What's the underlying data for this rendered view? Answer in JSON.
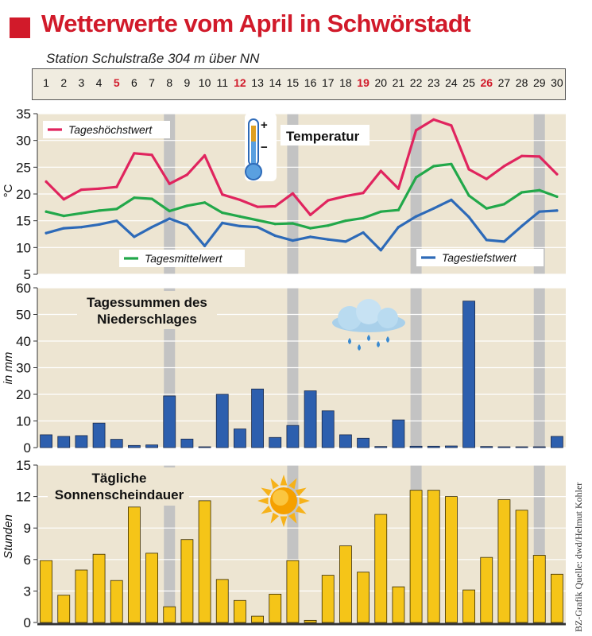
{
  "header": {
    "title": "Wetterwerte vom April in Schwörstadt",
    "subtitle": "Station Schulstraße 304 m über NN"
  },
  "days": [
    "1",
    "2",
    "3",
    "4",
    "5",
    "6",
    "7",
    "8",
    "9",
    "10",
    "11",
    "12",
    "13",
    "14",
    "15",
    "16",
    "17",
    "18",
    "19",
    "20",
    "21",
    "22",
    "23",
    "24",
    "25",
    "26",
    "27",
    "28",
    "29",
    "30"
  ],
  "sundays": [
    "5",
    "12",
    "19",
    "26"
  ],
  "colors": {
    "title_red": "#d11a2a",
    "panel_bg": "#ede5d2",
    "week_band": "#c3c3c3",
    "max_line": "#e0245e",
    "mean_line": "#22a84a",
    "min_line": "#2d6ab8",
    "precip_bar": "#2d5fae",
    "sun_bar": "#f5c518"
  },
  "icons": [
    "thermometer-icon",
    "rain-cloud-icon",
    "sun-icon"
  ],
  "source": "BZ-Grafik   Quelle: dwd/Helmut Kohler",
  "chart_data": [
    {
      "type": "line",
      "title": "Temperatur",
      "ylabel": "°C",
      "ylim": [
        5,
        35
      ],
      "yticks": [
        "5",
        "10",
        "15",
        "20",
        "25",
        "30",
        "35"
      ],
      "x": [
        1,
        2,
        3,
        4,
        5,
        6,
        7,
        8,
        9,
        10,
        11,
        12,
        13,
        14,
        15,
        16,
        17,
        18,
        19,
        20,
        21,
        22,
        23,
        24,
        25,
        26,
        27,
        28,
        29,
        30
      ],
      "series": [
        {
          "name": "Tageshöchstwert",
          "values": [
            22.3,
            19.0,
            20.8,
            21.0,
            21.3,
            27.6,
            27.3,
            21.9,
            23.6,
            27.2,
            19.9,
            18.9,
            17.6,
            17.7,
            20.1,
            16.1,
            18.8,
            19.6,
            20.2,
            24.3,
            21.0,
            31.9,
            33.9,
            32.8,
            24.6,
            22.8,
            25.2,
            27.1,
            27.0,
            23.7
          ]
        },
        {
          "name": "Tagesmittelwert",
          "values": [
            16.7,
            15.9,
            16.4,
            16.9,
            17.2,
            19.3,
            19.1,
            16.8,
            17.8,
            18.4,
            16.5,
            15.8,
            15.1,
            14.4,
            14.5,
            13.6,
            14.1,
            15.0,
            15.5,
            16.7,
            17.0,
            23.1,
            25.2,
            25.6,
            19.7,
            17.3,
            18.1,
            20.3,
            20.7,
            19.5
          ]
        },
        {
          "name": "Tagestiefstwert",
          "values": [
            12.7,
            13.6,
            13.8,
            14.3,
            15.0,
            12.0,
            13.8,
            15.4,
            14.2,
            10.3,
            14.6,
            14.0,
            13.8,
            12.2,
            11.3,
            12.0,
            11.5,
            11.1,
            12.8,
            9.5,
            13.8,
            15.8,
            17.3,
            18.9,
            15.7,
            11.4,
            11.1,
            14.0,
            16.7,
            16.9
          ]
        }
      ]
    },
    {
      "type": "bar",
      "title": "Tagessummen des Niederschlages",
      "ylabel": "in mm",
      "ylim": [
        0,
        60
      ],
      "yticks": [
        "0",
        "10",
        "20",
        "30",
        "40",
        "50",
        "60"
      ],
      "categories": [
        "1",
        "2",
        "3",
        "4",
        "5",
        "6",
        "7",
        "8",
        "9",
        "10",
        "11",
        "12",
        "13",
        "14",
        "15",
        "16",
        "17",
        "18",
        "19",
        "20",
        "21",
        "22",
        "23",
        "24",
        "25",
        "26",
        "27",
        "28",
        "29",
        "30"
      ],
      "values": [
        4.8,
        4.2,
        4.5,
        9.2,
        3.1,
        0.8,
        1.0,
        19.4,
        3.2,
        0.3,
        20.0,
        7.0,
        22.0,
        3.8,
        8.3,
        21.3,
        13.8,
        4.8,
        3.5,
        0.4,
        10.4,
        0.5,
        0.5,
        0.6,
        55.0,
        0.4,
        0.3,
        0.3,
        0.3,
        4.2
      ]
    },
    {
      "type": "bar",
      "title": "Tägliche Sonnenscheindauer",
      "ylabel": "Stunden",
      "ylim": [
        0,
        15
      ],
      "yticks": [
        "0",
        "3",
        "6",
        "9",
        "12",
        "15"
      ],
      "categories": [
        "1",
        "2",
        "3",
        "4",
        "5",
        "6",
        "7",
        "8",
        "9",
        "10",
        "11",
        "12",
        "13",
        "14",
        "15",
        "16",
        "17",
        "18",
        "19",
        "20",
        "21",
        "22",
        "23",
        "24",
        "25",
        "26",
        "27",
        "28",
        "29",
        "30"
      ],
      "values": [
        5.9,
        2.6,
        5.0,
        6.5,
        4.0,
        11.0,
        6.6,
        1.5,
        7.9,
        11.6,
        4.1,
        2.1,
        0.6,
        2.7,
        5.9,
        0.2,
        4.5,
        7.3,
        4.8,
        10.3,
        3.4,
        12.6,
        12.6,
        12.0,
        3.1,
        6.2,
        11.7,
        10.7,
        6.4,
        4.6
      ]
    }
  ]
}
